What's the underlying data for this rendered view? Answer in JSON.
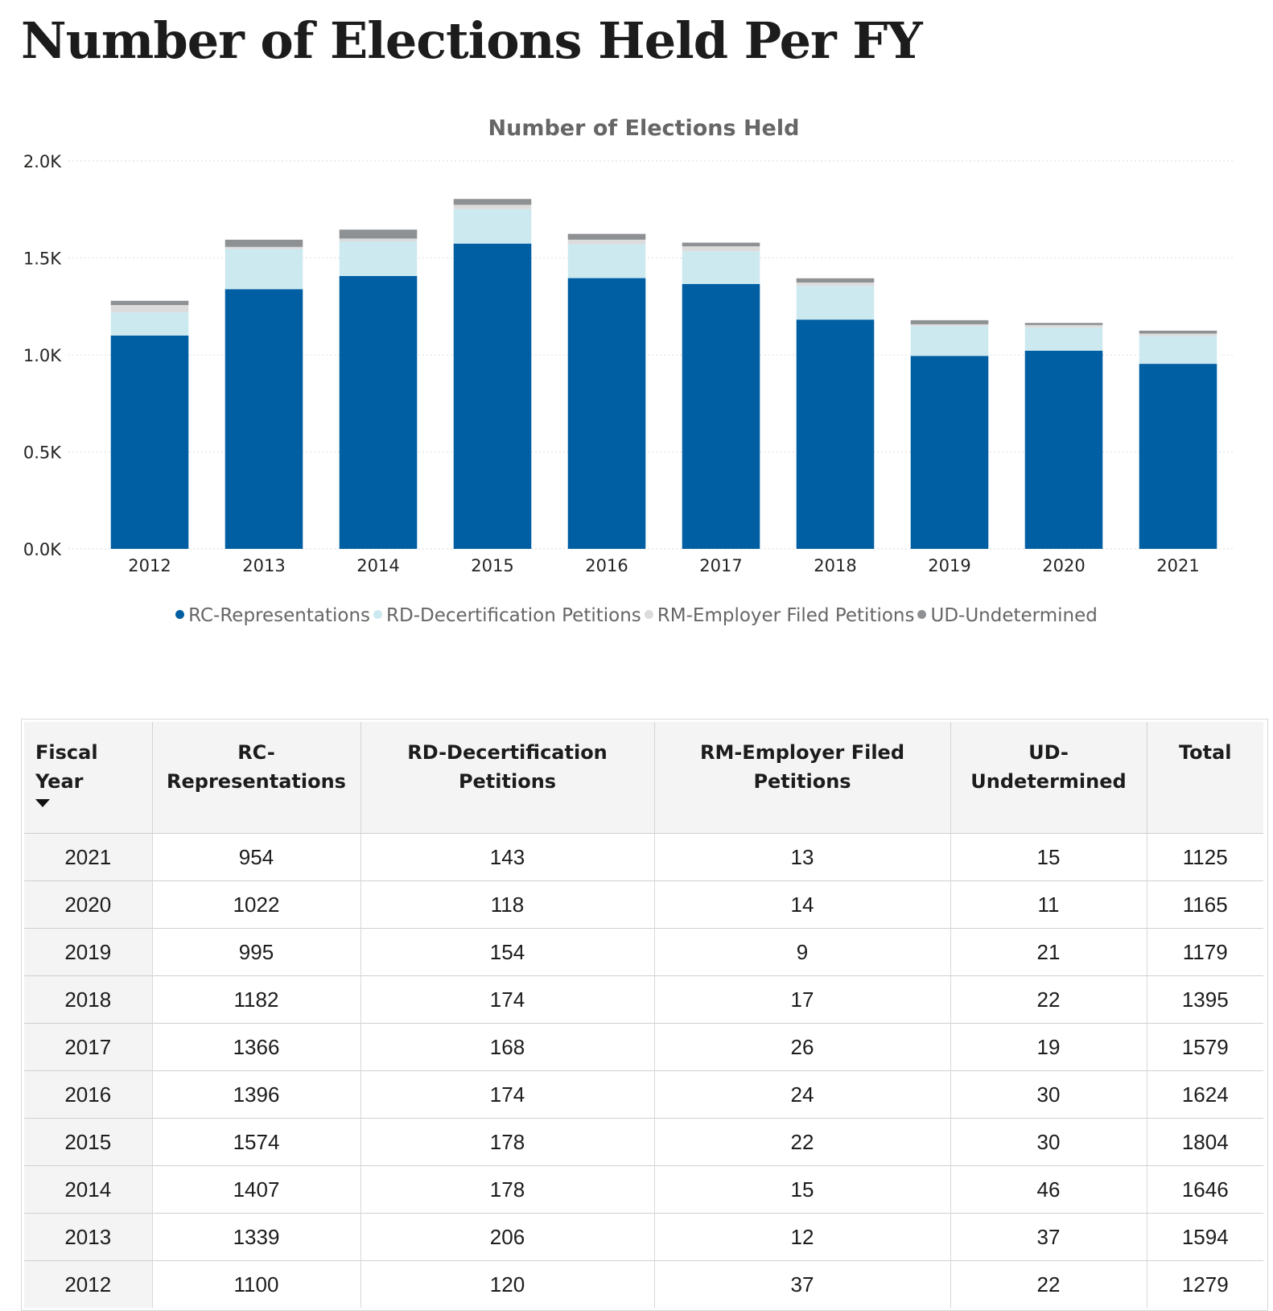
{
  "page_title": "Number of Elections Held Per FY",
  "colors": {
    "rc": "#005ea2",
    "rd": "#cde9f0",
    "rm": "#dcdcdc",
    "ud": "#8e9194"
  },
  "chart_data": {
    "type": "bar",
    "stacked": true,
    "title": "Number of Elections Held",
    "xlabel": "",
    "ylabel": "",
    "categories": [
      "2012",
      "2013",
      "2014",
      "2015",
      "2016",
      "2017",
      "2018",
      "2019",
      "2020",
      "2021"
    ],
    "series": [
      {
        "name": "RC-Representations",
        "values": [
          1100,
          1339,
          1407,
          1574,
          1396,
          1366,
          1182,
          995,
          1022,
          954
        ]
      },
      {
        "name": "RD-Decertification Petitions",
        "values": [
          120,
          206,
          178,
          178,
          174,
          168,
          174,
          154,
          118,
          143
        ]
      },
      {
        "name": "RM-Employer Filed Petitions",
        "values": [
          37,
          12,
          15,
          22,
          24,
          26,
          17,
          9,
          14,
          13
        ]
      },
      {
        "name": "UD-Undetermined",
        "values": [
          22,
          37,
          46,
          30,
          30,
          19,
          22,
          21,
          11,
          15
        ]
      }
    ],
    "ylim": [
      0,
      2000
    ],
    "yticks": [
      0,
      500,
      1000,
      1500,
      2000
    ],
    "ytick_labels": [
      "0.0K",
      "0.5K",
      "1.0K",
      "1.5K",
      "2.0K"
    ],
    "grid": true,
    "legend_position": "bottom"
  },
  "table": {
    "headers": [
      "Fiscal Year",
      "RC-Representations",
      "RD-Decertification Petitions",
      "RM-Employer Filed Petitions",
      "UD-Undetermined",
      "Total"
    ],
    "rows": [
      [
        "2021",
        "954",
        "143",
        "13",
        "15",
        "1125"
      ],
      [
        "2020",
        "1022",
        "118",
        "14",
        "11",
        "1165"
      ],
      [
        "2019",
        "995",
        "154",
        "9",
        "21",
        "1179"
      ],
      [
        "2018",
        "1182",
        "174",
        "17",
        "22",
        "1395"
      ],
      [
        "2017",
        "1366",
        "168",
        "26",
        "19",
        "1579"
      ],
      [
        "2016",
        "1396",
        "174",
        "24",
        "30",
        "1624"
      ],
      [
        "2015",
        "1574",
        "178",
        "22",
        "30",
        "1804"
      ],
      [
        "2014",
        "1407",
        "178",
        "15",
        "46",
        "1646"
      ],
      [
        "2013",
        "1339",
        "206",
        "12",
        "37",
        "1594"
      ],
      [
        "2012",
        "1100",
        "120",
        "37",
        "22",
        "1279"
      ]
    ]
  }
}
